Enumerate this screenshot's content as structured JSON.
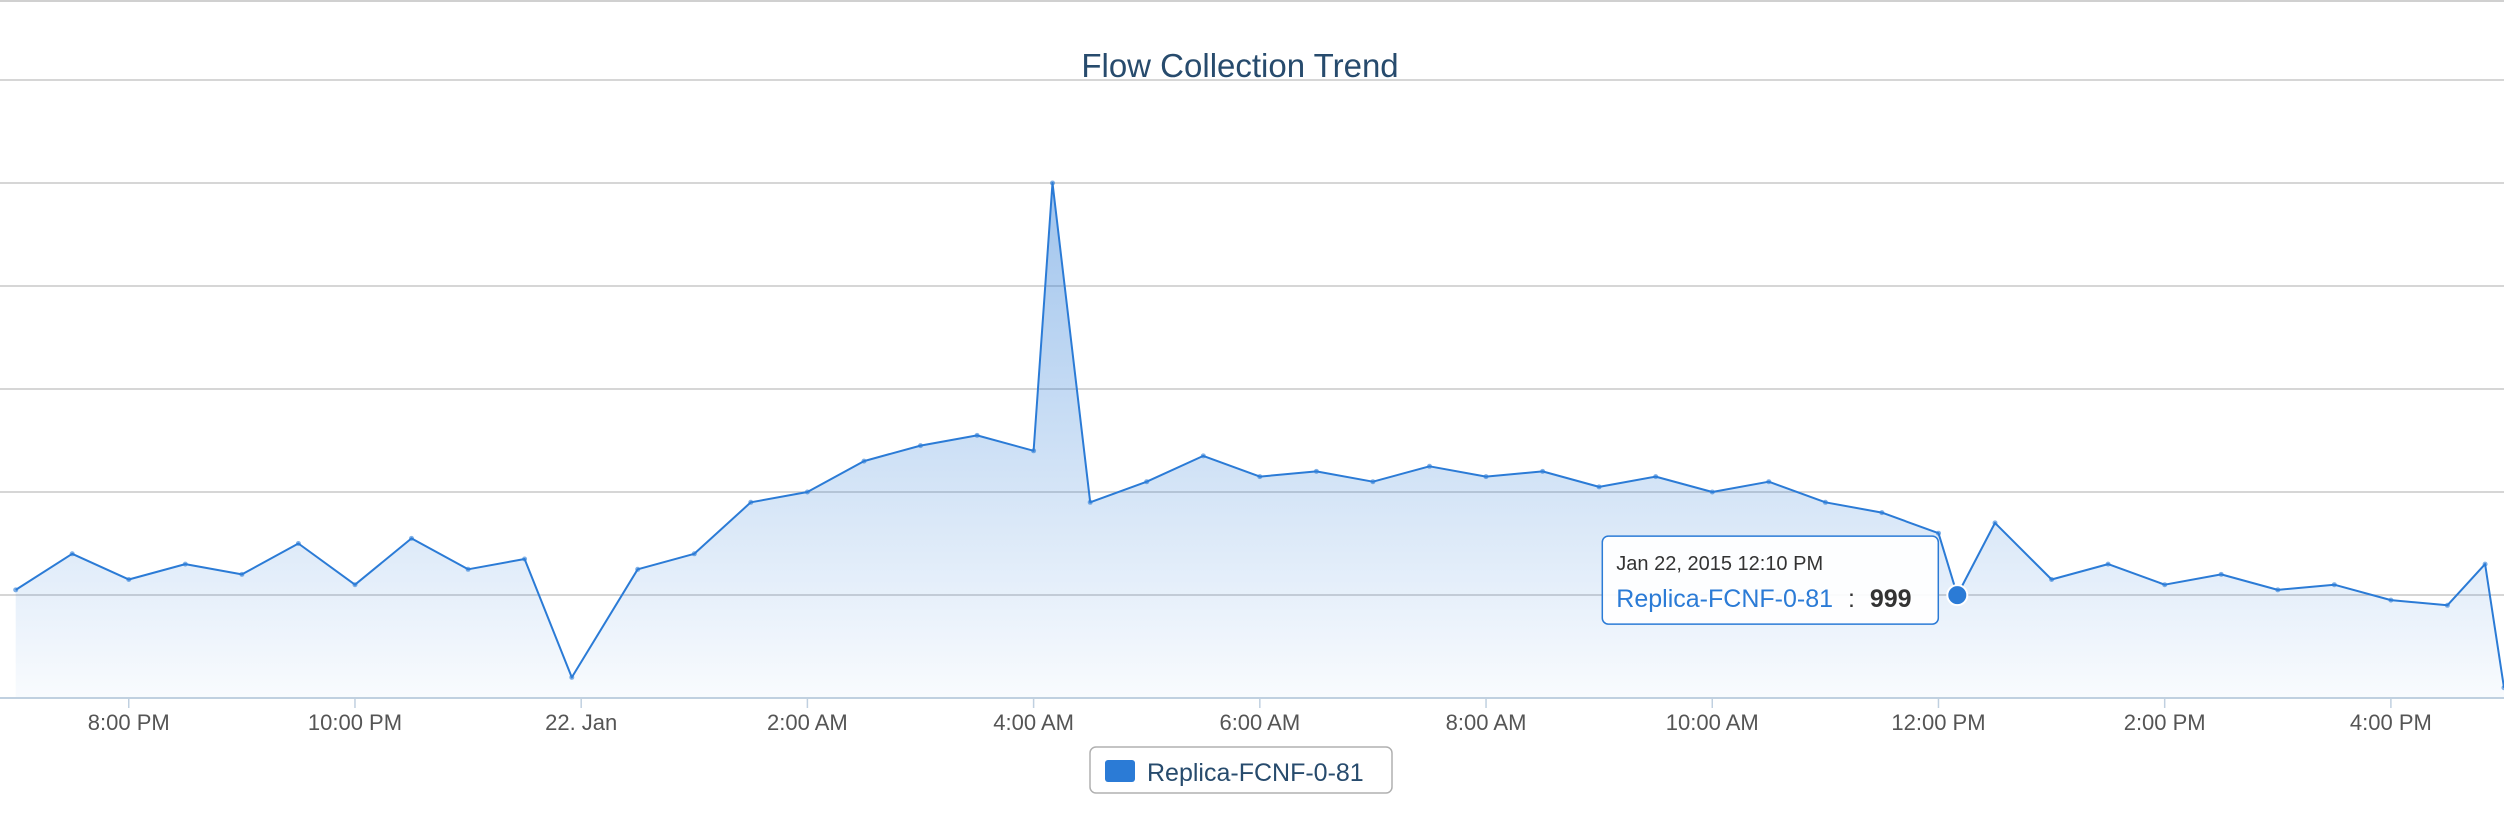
{
  "chart_data": {
    "type": "area",
    "title": "Flow Collection Trend",
    "xlabel": "",
    "ylabel": "",
    "x_range": [
      "2015-01-21 18:57",
      "2015-01-22 17:00"
    ],
    "x_ticks": [
      "8:00 PM",
      "10:00 PM",
      "22. Jan",
      "2:00 AM",
      "4:00 AM",
      "6:00 AM",
      "8:00 AM",
      "10:00 AM",
      "12:00 PM",
      "2:00 PM",
      "4:00 PM"
    ],
    "y_range": [
      0,
      6000
    ],
    "y_ticks_labeled": false,
    "grid": "horizontal",
    "legend": "bottom-center",
    "series": [
      {
        "name": "Replica-FCNF-0-81",
        "color": "#2b7bd6",
        "points": [
          [
            "2015-01-21 19:00",
            1050
          ],
          [
            "2015-01-21 19:30",
            1400
          ],
          [
            "2015-01-21 20:00",
            1150
          ],
          [
            "2015-01-21 20:30",
            1300
          ],
          [
            "2015-01-21 21:00",
            1200
          ],
          [
            "2015-01-21 21:30",
            1500
          ],
          [
            "2015-01-21 22:00",
            1100
          ],
          [
            "2015-01-21 22:30",
            1550
          ],
          [
            "2015-01-21 23:00",
            1250
          ],
          [
            "2015-01-21 23:30",
            1350
          ],
          [
            "2015-01-21 23:55",
            200
          ],
          [
            "2015-01-22 00:30",
            1250
          ],
          [
            "2015-01-22 01:00",
            1400
          ],
          [
            "2015-01-22 01:30",
            1900
          ],
          [
            "2015-01-22 02:00",
            2000
          ],
          [
            "2015-01-22 02:30",
            2300
          ],
          [
            "2015-01-22 03:00",
            2450
          ],
          [
            "2015-01-22 03:30",
            2550
          ],
          [
            "2015-01-22 04:00",
            2400
          ],
          [
            "2015-01-22 04:10",
            5000
          ],
          [
            "2015-01-22 04:30",
            1900
          ],
          [
            "2015-01-22 05:00",
            2100
          ],
          [
            "2015-01-22 05:30",
            2350
          ],
          [
            "2015-01-22 06:00",
            2150
          ],
          [
            "2015-01-22 06:30",
            2200
          ],
          [
            "2015-01-22 07:00",
            2100
          ],
          [
            "2015-01-22 07:30",
            2250
          ],
          [
            "2015-01-22 08:00",
            2150
          ],
          [
            "2015-01-22 08:30",
            2200
          ],
          [
            "2015-01-22 09:00",
            2050
          ],
          [
            "2015-01-22 09:30",
            2150
          ],
          [
            "2015-01-22 10:00",
            2000
          ],
          [
            "2015-01-22 10:30",
            2100
          ],
          [
            "2015-01-22 11:00",
            1900
          ],
          [
            "2015-01-22 11:30",
            1800
          ],
          [
            "2015-01-22 12:00",
            1600
          ],
          [
            "2015-01-22 12:10",
            999
          ],
          [
            "2015-01-22 12:30",
            1700
          ],
          [
            "2015-01-22 13:00",
            1150
          ],
          [
            "2015-01-22 13:30",
            1300
          ],
          [
            "2015-01-22 14:00",
            1100
          ],
          [
            "2015-01-22 14:30",
            1200
          ],
          [
            "2015-01-22 15:00",
            1050
          ],
          [
            "2015-01-22 15:30",
            1100
          ],
          [
            "2015-01-22 16:00",
            950
          ],
          [
            "2015-01-22 16:30",
            900
          ],
          [
            "2015-01-22 16:50",
            1300
          ],
          [
            "2015-01-22 17:00",
            100
          ]
        ]
      }
    ]
  },
  "tooltip": {
    "date": "Jan 22, 2015 12:10 PM",
    "series_name": "Replica-FCNF-0-81",
    "separator": ":",
    "value": "999",
    "x": "2015-01-22 12:10",
    "y": 999
  },
  "legend": {
    "label": "Replica-FCNF-0-81",
    "swatch_color": "#2b7bd6"
  }
}
